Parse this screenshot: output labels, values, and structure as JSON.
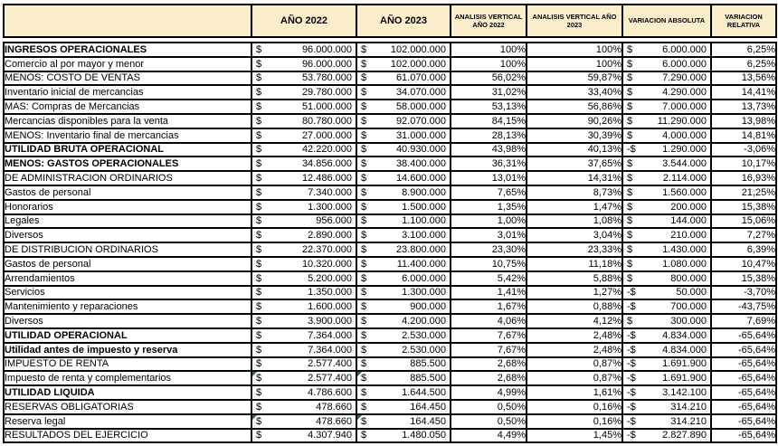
{
  "colors": {
    "header_fill": "#FBEFCB",
    "border": "#000000",
    "flag_green": "#1E7145",
    "text": "#000000"
  },
  "table": {
    "currency": "$",
    "headers": {
      "blank": "",
      "y2022": "AÑO 2022",
      "y2023": "AÑO 2023",
      "av2022": "ANALISIS VERTICAL AÑO 2022",
      "av2023": "ANALISIS VERTICAL AÑO 2023",
      "var_abs": "VARIACION ABSOLUTA",
      "var_rel": "VARIACION RELATIVA"
    },
    "rows": [
      {
        "label": "INGRESOS OPERACIONALES",
        "bold": true,
        "flag2022": false,
        "flag2023": false,
        "y2022": "96.000.000",
        "y2023": "102.000.000",
        "av2022": "100%",
        "av2023": "100%",
        "var_abs_sign": "$",
        "var_abs": "6.000.000",
        "var_rel": "6,25%"
      },
      {
        "label": "Comercio al por mayor y menor",
        "bold": false,
        "flag2022": false,
        "flag2023": false,
        "y2022": "96.000.000",
        "y2023": "102.000.000",
        "av2022": "100%",
        "av2023": "100%",
        "var_abs_sign": "$",
        "var_abs": "6.000.000",
        "var_rel": "6,25%"
      },
      {
        "label": "MENOS: COSTO DE VENTAS",
        "bold": false,
        "flag2022": false,
        "flag2023": false,
        "y2022": "53.780.000",
        "y2023": "61.070.000",
        "av2022": "56,02%",
        "av2023": "59,87%",
        "var_abs_sign": "$",
        "var_abs": "7.290.000",
        "var_rel": "13,56%"
      },
      {
        "label": "Inventario inicial de mercancias",
        "bold": false,
        "flag2022": false,
        "flag2023": false,
        "y2022": "29.780.000",
        "y2023": "34.070.000",
        "av2022": "31,02%",
        "av2023": "33,40%",
        "var_abs_sign": "$",
        "var_abs": "4.290.000",
        "var_rel": "14,41%"
      },
      {
        "label": "MAS: Compras de Mercancias",
        "bold": false,
        "flag2022": false,
        "flag2023": false,
        "y2022": "51.000.000",
        "y2023": "58.000.000",
        "av2022": "53,13%",
        "av2023": "56,86%",
        "var_abs_sign": "$",
        "var_abs": "7.000.000",
        "var_rel": "13,73%"
      },
      {
        "label": "Mercancias disponibles para la venta",
        "bold": false,
        "flag2022": false,
        "flag2023": false,
        "y2022": "80.780.000",
        "y2023": "92.070.000",
        "av2022": "84,15%",
        "av2023": "90,26%",
        "var_abs_sign": "$",
        "var_abs": "11.290.000",
        "var_rel": "13,98%"
      },
      {
        "label": "MENOS: Inventario final de mercancias",
        "bold": false,
        "flag2022": false,
        "flag2023": false,
        "y2022": "27.000.000",
        "y2023": "31.000.000",
        "av2022": "28,13%",
        "av2023": "30,39%",
        "var_abs_sign": "$",
        "var_abs": "4.000.000",
        "var_rel": "14,81%"
      },
      {
        "label": "UTILIDAD BRUTA OPERACIONAL",
        "bold": true,
        "flag2022": false,
        "flag2023": false,
        "y2022": "42.220.000",
        "y2023": "40.930.000",
        "av2022": "43,98%",
        "av2023": "40,13%",
        "var_abs_sign": "-$",
        "var_abs": "1.290.000",
        "var_rel": "-3,06%"
      },
      {
        "label": "MENOS: GASTOS OPERACIONALES",
        "bold": true,
        "flag2022": false,
        "flag2023": false,
        "y2022": "34.856.000",
        "y2023": "38.400.000",
        "av2022": "36,31%",
        "av2023": "37,65%",
        "var_abs_sign": "$",
        "var_abs": "3.544.000",
        "var_rel": "10,17%"
      },
      {
        "label": "DE ADMINISTRACION ORDINARIOS",
        "bold": false,
        "flag2022": false,
        "flag2023": false,
        "y2022": "12.486.000",
        "y2023": "14.600.000",
        "av2022": "13,01%",
        "av2023": "14,31%",
        "var_abs_sign": "$",
        "var_abs": "2.114.000",
        "var_rel": "16,93%"
      },
      {
        "label": "Gastos de personal",
        "bold": false,
        "flag2022": false,
        "flag2023": false,
        "y2022": "7.340.000",
        "y2023": "8.900.000",
        "av2022": "7,65%",
        "av2023": "8,73%",
        "var_abs_sign": "$",
        "var_abs": "1.560.000",
        "var_rel": "21,25%"
      },
      {
        "label": "Honorarios",
        "bold": false,
        "flag2022": false,
        "flag2023": false,
        "y2022": "1.300.000",
        "y2023": "1.500.000",
        "av2022": "1,35%",
        "av2023": "1,47%",
        "var_abs_sign": "$",
        "var_abs": "200.000",
        "var_rel": "15,38%"
      },
      {
        "label": "Legales",
        "bold": false,
        "flag2022": false,
        "flag2023": false,
        "y2022": "956.000",
        "y2023": "1.100.000",
        "av2022": "1,00%",
        "av2023": "1,08%",
        "var_abs_sign": "$",
        "var_abs": "144.000",
        "var_rel": "15,06%"
      },
      {
        "label": "Diversos",
        "bold": false,
        "flag2022": false,
        "flag2023": false,
        "y2022": "2.890.000",
        "y2023": "3.100.000",
        "av2022": "3,01%",
        "av2023": "3,04%",
        "var_abs_sign": "$",
        "var_abs": "210.000",
        "var_rel": "7,27%"
      },
      {
        "label": "DE DISTRIBUCION ORDINARIOS",
        "bold": false,
        "flag2022": false,
        "flag2023": false,
        "y2022": "22.370.000",
        "y2023": "23.800.000",
        "av2022": "23,30%",
        "av2023": "23,33%",
        "var_abs_sign": "$",
        "var_abs": "1.430.000",
        "var_rel": "6,39%"
      },
      {
        "label": "Gastos de personal",
        "bold": false,
        "flag2022": false,
        "flag2023": false,
        "y2022": "10.320.000",
        "y2023": "11.400.000",
        "av2022": "10,75%",
        "av2023": "11,18%",
        "var_abs_sign": "$",
        "var_abs": "1.080.000",
        "var_rel": "10,47%"
      },
      {
        "label": "Arrendamientos",
        "bold": false,
        "flag2022": false,
        "flag2023": false,
        "y2022": "5.200.000",
        "y2023": "6.000.000",
        "av2022": "5,42%",
        "av2023": "5,88%",
        "var_abs_sign": "$",
        "var_abs": "800.000",
        "var_rel": "15,38%"
      },
      {
        "label": "Servicios",
        "bold": false,
        "flag2022": false,
        "flag2023": false,
        "y2022": "1.350.000",
        "y2023": "1.300.000",
        "av2022": "1,41%",
        "av2023": "1,27%",
        "var_abs_sign": "-$",
        "var_abs": "50.000",
        "var_rel": "-3,70%"
      },
      {
        "label": "Mantenimiento y reparaciones",
        "bold": false,
        "flag2022": false,
        "flag2023": false,
        "y2022": "1.600.000",
        "y2023": "900.000",
        "av2022": "1,67%",
        "av2023": "0,88%",
        "var_abs_sign": "-$",
        "var_abs": "700.000",
        "var_rel": "-43,75%"
      },
      {
        "label": "Diversos",
        "bold": false,
        "flag2022": false,
        "flag2023": false,
        "y2022": "3.900.000",
        "y2023": "4.200.000",
        "av2022": "4,06%",
        "av2023": "4,12%",
        "var_abs_sign": "$",
        "var_abs": "300.000",
        "var_rel": "7,69%"
      },
      {
        "label": "UTILIDAD OPERACIONAL",
        "bold": true,
        "flag2022": false,
        "flag2023": false,
        "y2022": "7.364.000",
        "y2023": "2.530.000",
        "av2022": "7,67%",
        "av2023": "2,48%",
        "var_abs_sign": "-$",
        "var_abs": "4.834.000",
        "var_rel": "-65,64%"
      },
      {
        "label": "Utilidad antes de impuesto y reserva",
        "bold": true,
        "flag2022": false,
        "flag2023": false,
        "y2022": "7.364.000",
        "y2023": "2.530.000",
        "av2022": "7,67%",
        "av2023": "2,48%",
        "var_abs_sign": "-$",
        "var_abs": "4.834.000",
        "var_rel": "-65,64%"
      },
      {
        "label": "IMPUESTO DE RENTA",
        "bold": false,
        "flag2022": false,
        "flag2023": false,
        "y2022": "2.577.400",
        "y2023": "885.500",
        "av2022": "2,68%",
        "av2023": "0,87%",
        "var_abs_sign": "-$",
        "var_abs": "1.691.900",
        "var_rel": "-65,64%"
      },
      {
        "label": "Impuesto de renta y complementarios",
        "bold": false,
        "flag2022": true,
        "flag2023": true,
        "y2022": "2.577.400",
        "y2023": "885.500",
        "av2022": "2,68%",
        "av2023": "0,87%",
        "var_abs_sign": "-$",
        "var_abs": "1.691.900",
        "var_rel": "-65,64%"
      },
      {
        "label": "UTILIDAD LIQUIDA",
        "bold": true,
        "flag2022": false,
        "flag2023": false,
        "y2022": "4.786.600",
        "y2023": "1.644.500",
        "av2022": "4,99%",
        "av2023": "1,61%",
        "var_abs_sign": "-$",
        "var_abs": "3.142.100",
        "var_rel": "-65,64%"
      },
      {
        "label": "RESERVAS OBLIGATORIAS",
        "bold": false,
        "flag2022": false,
        "flag2023": false,
        "y2022": "478.660",
        "y2023": "164.450",
        "av2022": "0,50%",
        "av2023": "0,16%",
        "var_abs_sign": "-$",
        "var_abs": "314.210",
        "var_rel": "-65,64%"
      },
      {
        "label": "Reserva legal",
        "bold": false,
        "flag2022": true,
        "flag2023": true,
        "y2022": "478.660",
        "y2023": "164.450",
        "av2022": "0,50%",
        "av2023": "0,16%",
        "var_abs_sign": "-$",
        "var_abs": "314.210",
        "var_rel": "-65,64%"
      },
      {
        "label": "RESULTADOS DEL EJERCICIO",
        "bold": false,
        "flag2022": false,
        "flag2023": false,
        "y2022": "4.307.940",
        "y2023": "1.480.050",
        "av2022": "4,49%",
        "av2023": "1,45%",
        "var_abs_sign": "-$",
        "var_abs": "2.827.890",
        "var_rel": "-65,64%"
      }
    ]
  }
}
